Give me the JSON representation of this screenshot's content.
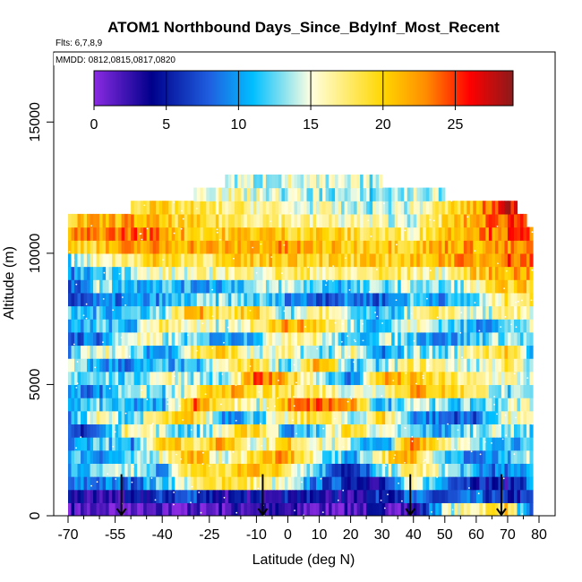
{
  "chart_data": {
    "type": "heatmap",
    "title": "ATOM1 Northbound Days_Since_BdyInf_Most_Recent",
    "subtitle": "Flts: 6,7,8,9",
    "annotation": "MMDD: 0812,0815,0817,0820",
    "xlabel": "Latitude (deg N)",
    "ylabel": "Altitude (m)",
    "xlim": [
      -70,
      80
    ],
    "ylim": [
      0,
      17500
    ],
    "x_ticks": [
      -70,
      -55,
      -40,
      -25,
      -10,
      0,
      10,
      20,
      30,
      40,
      50,
      60,
      70,
      80
    ],
    "x_tick_labels": [
      "-70",
      "-55",
      "-40",
      "-25",
      "-10",
      "0",
      "10",
      "20",
      "30",
      "40",
      "50",
      "60",
      "70",
      "80"
    ],
    "x_minor_ticks": [
      -65,
      -60,
      -50,
      -45,
      -35,
      -30,
      -20,
      -15,
      -5,
      5,
      15,
      25,
      35,
      45,
      55,
      65,
      75
    ],
    "y_ticks": [
      0,
      5000,
      10000,
      15000
    ],
    "y_tick_labels": [
      "0",
      "5000",
      "10000",
      "15000"
    ],
    "grid": false,
    "legend_position": "top-inside",
    "colorbar": {
      "min": 0,
      "max": 29,
      "ticks": [
        0,
        5,
        10,
        15,
        20,
        25
      ],
      "tick_labels": [
        "0",
        "5",
        "10",
        "15",
        "20",
        "25"
      ],
      "colors": [
        "#8a2be2",
        "#00008b",
        "#1f5fe0",
        "#00bfff",
        "#ffffe0",
        "#ffd700",
        "#ff8c00",
        "#ff0000",
        "#8b1a1a"
      ],
      "stops": [
        0,
        4,
        8,
        11,
        15,
        20,
        23,
        26,
        29
      ]
    },
    "altitude_bins": [
      0,
      500,
      1000,
      1500,
      2000,
      2500,
      3000,
      3500,
      4000,
      4500,
      5000,
      5500,
      6000,
      6500,
      7000,
      7500,
      8000,
      8500,
      9000,
      9500,
      10000,
      10500,
      11000,
      11500,
      12000,
      12500,
      13000
    ],
    "latitude_coverage": [
      {
        "alt": 0,
        "lat_min": -70,
        "lat_max": 78
      },
      {
        "alt": 10500,
        "lat_min": -70,
        "lat_max": 78
      },
      {
        "alt": 11000,
        "lat_min": -70,
        "lat_max": 76
      },
      {
        "alt": 11500,
        "lat_min": -50,
        "lat_max": 73
      },
      {
        "alt": 12000,
        "lat_min": -45,
        "lat_max": 73
      },
      {
        "alt": 12500,
        "lat_min": -24,
        "lat_max": 48
      }
    ],
    "profiles": [
      {
        "lat": -70,
        "values": [
          2,
          4,
          8,
          10,
          12,
          8,
          6,
          9,
          11,
          10,
          12,
          14,
          10,
          8,
          9,
          11,
          7,
          6,
          9,
          12,
          20,
          22,
          20
        ]
      },
      {
        "lat": -60,
        "values": [
          1,
          2,
          9,
          12,
          10,
          13,
          8,
          16,
          12,
          9,
          14,
          10,
          17,
          9,
          12,
          11,
          8,
          14,
          12,
          16,
          20,
          23,
          21
        ]
      },
      {
        "lat": -50,
        "values": [
          0,
          3,
          8,
          14,
          11,
          9,
          18,
          12,
          10,
          15,
          11,
          9,
          13,
          16,
          10,
          12,
          9,
          11,
          14,
          18,
          22,
          24,
          22,
          20
        ]
      },
      {
        "lat": -40,
        "values": [
          1,
          6,
          12,
          10,
          16,
          22,
          14,
          18,
          10,
          12,
          17,
          11,
          9,
          14,
          19,
          13,
          10,
          12,
          16,
          20,
          22,
          23,
          20,
          19
        ]
      },
      {
        "lat": -30,
        "values": [
          1,
          8,
          16,
          20,
          22,
          18,
          12,
          20,
          24,
          16,
          14,
          10,
          18,
          12,
          15,
          22,
          12,
          10,
          15,
          18,
          22,
          20,
          19,
          18
        ]
      },
      {
        "lat": -20,
        "values": [
          2,
          3,
          20,
          18,
          14,
          22,
          16,
          10,
          18,
          22,
          12,
          16,
          20,
          10,
          14,
          18,
          13,
          11,
          17,
          19,
          21,
          20,
          18,
          17,
          16
        ]
      },
      {
        "lat": -10,
        "values": [
          3,
          4,
          17,
          22,
          20,
          15,
          21,
          12,
          14,
          18,
          24,
          20,
          14,
          12,
          18,
          20,
          12,
          13,
          16,
          20,
          22,
          21,
          18,
          17,
          15,
          14
        ]
      },
      {
        "lat": 0,
        "values": [
          2,
          5,
          14,
          18,
          22,
          20,
          10,
          16,
          22,
          18,
          20,
          12,
          16,
          18,
          22,
          12,
          10,
          14,
          18,
          21,
          22,
          20,
          17,
          15,
          14,
          15
        ]
      },
      {
        "lat": 10,
        "values": [
          1,
          4,
          8,
          12,
          14,
          16,
          12,
          20,
          24,
          18,
          15,
          22,
          12,
          16,
          20,
          18,
          8,
          12,
          17,
          20,
          21,
          20,
          16,
          15,
          14,
          14
        ]
      },
      {
        "lat": 20,
        "values": [
          2,
          3,
          6,
          4,
          10,
          14,
          20,
          12,
          22,
          15,
          8,
          12,
          16,
          10,
          14,
          12,
          9,
          11,
          16,
          19,
          20,
          19,
          16,
          14,
          13,
          14
        ]
      },
      {
        "lat": 30,
        "values": [
          3,
          6,
          4,
          12,
          18,
          8,
          14,
          20,
          10,
          16,
          22,
          12,
          8,
          14,
          11,
          10,
          8,
          13,
          18,
          20,
          21,
          18,
          15,
          14,
          13
        ]
      },
      {
        "lat": 40,
        "values": [
          2,
          8,
          15,
          18,
          22,
          24,
          12,
          10,
          16,
          22,
          20,
          18,
          14,
          12,
          16,
          15,
          12,
          14,
          17,
          20,
          20,
          17,
          15,
          15,
          14
        ]
      },
      {
        "lat": 50,
        "values": [
          14,
          6,
          10,
          14,
          12,
          18,
          10,
          8,
          12,
          20,
          18,
          16,
          12,
          9,
          13,
          18,
          10,
          12,
          16,
          22,
          22,
          21,
          19,
          18
        ]
      },
      {
        "lat": 60,
        "values": [
          17,
          8,
          6,
          10,
          8,
          12,
          14,
          8,
          12,
          18,
          16,
          14,
          18,
          12,
          10,
          14,
          12,
          16,
          20,
          22,
          22,
          23,
          22,
          21
        ]
      },
      {
        "lat": 70,
        "values": [
          20,
          5,
          4,
          8,
          10,
          12,
          14,
          16,
          14,
          12,
          16,
          18,
          20,
          14,
          12,
          16,
          18,
          20,
          22,
          24,
          22,
          24,
          25,
          27
        ]
      },
      {
        "lat": 78,
        "values": [
          4,
          6,
          10,
          12,
          14,
          10,
          12,
          14,
          16,
          12,
          14,
          12,
          10,
          12,
          14,
          16,
          18,
          20,
          22,
          24,
          22,
          24
        ]
      }
    ],
    "markers": [
      {
        "lat": -53,
        "alt": 900,
        "type": "arrow-down"
      },
      {
        "lat": -8,
        "alt": 900,
        "type": "arrow-down"
      },
      {
        "lat": 39,
        "alt": 900,
        "type": "arrow-down"
      },
      {
        "lat": 68,
        "alt": 900,
        "type": "arrow-down"
      }
    ]
  }
}
